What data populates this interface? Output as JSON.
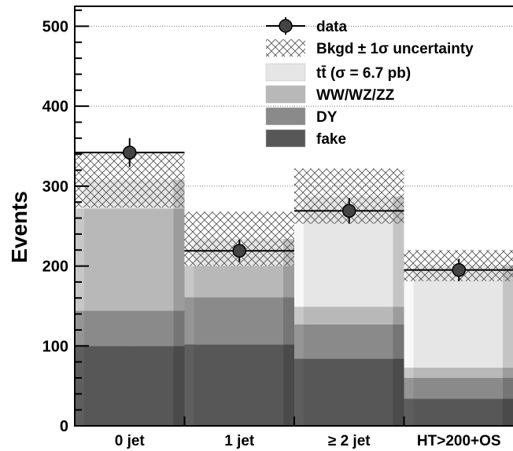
{
  "chart_data": {
    "type": "bar",
    "categories": [
      "0 jet",
      "1 jet",
      "≥ 2 jet",
      "HT>200+OS"
    ],
    "ylabel": "Events",
    "ylim": [
      0,
      525
    ],
    "yticks": [
      0,
      100,
      200,
      300,
      400,
      500
    ],
    "grid": "horizontal dotted",
    "legend_position": "top-right",
    "stack": [
      {
        "name": "fake",
        "color": "#575757",
        "values": [
          100,
          102,
          84,
          34
        ]
      },
      {
        "name": "DY",
        "color": "#8a8a8a",
        "values": [
          44,
          59,
          43,
          26
        ]
      },
      {
        "name": "WW/WZ/ZZ",
        "color": "#b8b8b8",
        "values": [
          128,
          39,
          22,
          13
        ]
      },
      {
        "name": "tt̄ (σ = 6.7 pb)",
        "color": "#e6e6e6",
        "values": [
          36,
          34,
          138,
          128
        ]
      }
    ],
    "uncertainty": {
      "name": "Bkgd ± 1σ uncertainty",
      "low": [
        273,
        200,
        253,
        181
      ],
      "high": [
        343,
        268,
        322,
        220
      ]
    },
    "data": {
      "name": "data",
      "values": [
        342,
        219,
        269,
        195
      ],
      "errors": [
        18,
        14,
        16,
        14
      ]
    }
  }
}
